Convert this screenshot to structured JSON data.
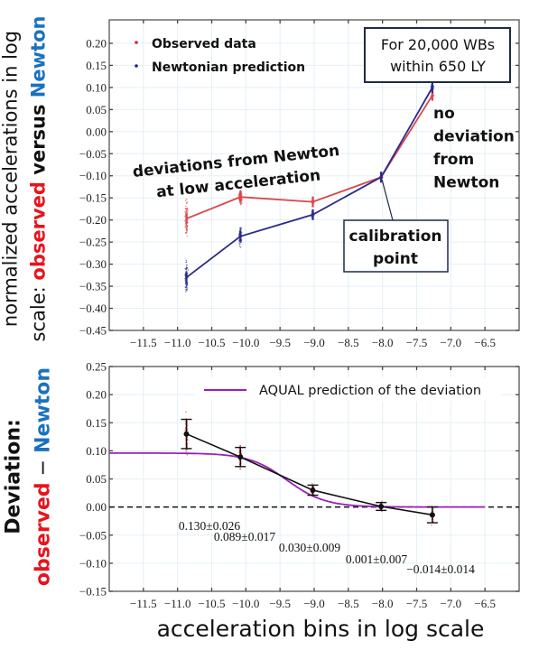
{
  "chart_data": [
    {
      "type": "line",
      "title": "",
      "ylabel_lines": [
        [
          {
            "text": "normalized accelerations in log",
            "color": "#111111",
            "bold": false
          }
        ],
        [
          {
            "text": "scale: ",
            "color": "#111111",
            "bold": false
          },
          {
            "text": "observed",
            "color": "#e8131b",
            "bold": true
          },
          {
            "text": " versus ",
            "color": "#111111",
            "bold": true
          },
          {
            "text": "Newton",
            "color": "#1a72bf",
            "bold": true
          }
        ]
      ],
      "xlabel": "",
      "xlim": [
        -12.0,
        -6.0
      ],
      "ylim": [
        -0.45,
        0.253
      ],
      "xticks": [
        -11.5,
        -11.0,
        -10.5,
        -10.0,
        -9.5,
        -9.0,
        -8.5,
        -8.0,
        -7.5,
        -7.0,
        -6.5
      ],
      "xtick_labels": [
        "−11.5",
        "−11.0",
        "−10.5",
        "−10.0",
        "−9.5",
        "−9.0",
        "−8.5",
        "−8.0",
        "−7.5",
        "−7.0",
        "−6.5"
      ],
      "yticks": [
        0.2,
        0.15,
        0.1,
        0.05,
        0.0,
        -0.05,
        -0.1,
        -0.15,
        -0.2,
        -0.25,
        -0.3,
        -0.35,
        -0.4,
        -0.45
      ],
      "ytick_labels": [
        "0.20",
        "0.15",
        "0.10",
        "0.05",
        "0.00",
        "−0.05",
        "−0.10",
        "−0.15",
        "−0.20",
        "−0.25",
        "−0.30",
        "−0.35",
        "−0.40",
        "−0.45"
      ],
      "grid": true,
      "legend": {
        "placement": "top-left",
        "entries": [
          {
            "label": "Observed data",
            "color": "#d62728",
            "marker": "dot"
          },
          {
            "label": "Newtonian prediction",
            "color": "#1f1f8f",
            "marker": "dot"
          }
        ]
      },
      "x": [
        -10.87,
        -10.08,
        -9.02,
        -8.02,
        -7.27
      ],
      "series": [
        {
          "name": "Observed data",
          "color": "#d9474b",
          "values": [
            -0.197,
            -0.148,
            -0.159,
            -0.103,
            0.082
          ],
          "scatter_spread": [
            0.05,
            0.025,
            0.01,
            0.006,
            0.012
          ]
        },
        {
          "name": "Newtonian prediction",
          "color": "#2b2b8c",
          "values": [
            -0.33,
            -0.237,
            -0.188,
            -0.103,
            0.1
          ],
          "scatter_spread": [
            0.05,
            0.03,
            0.012,
            0.006,
            0.01
          ]
        }
      ],
      "annotations": [
        {
          "id": "box-sample",
          "lines": [
            "For 20,000 WBs",
            "within 650 LY"
          ],
          "boxed": true
        },
        {
          "id": "deviations",
          "lines": [
            "deviations from Newton",
            "at low acceleration"
          ],
          "boxed": false
        },
        {
          "id": "no-deviation",
          "lines": [
            "no",
            "deviation",
            "from",
            "Newton"
          ],
          "boxed": false
        },
        {
          "id": "calibration",
          "lines": [
            "calibration",
            "point"
          ],
          "boxed": true
        }
      ]
    },
    {
      "type": "line",
      "title": "",
      "ylabel_lines": [
        [
          {
            "text": "Deviation:",
            "color": "#111111",
            "bold": true
          }
        ],
        [
          {
            "text": "observed",
            "color": "#e8131b",
            "bold": true
          },
          {
            "text": " − ",
            "color": "#111111",
            "bold": false
          },
          {
            "text": "Newton",
            "color": "#1a72bf",
            "bold": true
          }
        ]
      ],
      "xlabel": "acceleration bins in log scale",
      "xlim": [
        -12.0,
        -6.0
      ],
      "ylim": [
        -0.15,
        0.25
      ],
      "xticks": [
        -11.5,
        -11.0,
        -10.5,
        -10.0,
        -9.5,
        -9.0,
        -8.5,
        -8.0,
        -7.5,
        -7.0,
        -6.5
      ],
      "xtick_labels": [
        "−11.5",
        "−11.0",
        "−10.5",
        "−10.0",
        "−9.5",
        "−9.0",
        "−8.5",
        "−8.0",
        "−7.5",
        "−7.0",
        "−6.5"
      ],
      "yticks": [
        0.25,
        0.2,
        0.15,
        0.1,
        0.05,
        0.0,
        -0.05,
        -0.1,
        -0.15
      ],
      "ytick_labels": [
        "0.25",
        "0.20",
        "0.15",
        "0.10",
        "0.05",
        "0.00",
        "−0.05",
        "−0.10",
        "−0.15"
      ],
      "grid": true,
      "reference_line": {
        "y": 0.0,
        "style": "dashed",
        "color": "#111111"
      },
      "legend": {
        "placement": "top-right",
        "entries": [
          {
            "label": "AQUAL prediction of the deviation",
            "color": "#9b1fb8",
            "marker": "line"
          }
        ]
      },
      "x": [
        -10.87,
        -10.08,
        -9.02,
        -8.02,
        -7.27
      ],
      "series": [
        {
          "name": "Deviation",
          "color": "#111111",
          "values": [
            0.13,
            0.089,
            0.03,
            0.001,
            -0.014
          ],
          "errors": [
            0.026,
            0.017,
            0.009,
            0.007,
            0.014
          ]
        },
        {
          "name": "AQUAL prediction of the deviation",
          "color": "#9b1fb8",
          "curve": {
            "type": "sigmoid",
            "plateau": 0.096,
            "floor": 0.0,
            "x_mid": -9.4,
            "width": 0.28,
            "x_range": [
              -12.0,
              -6.5
            ]
          }
        }
      ],
      "value_labels": [
        "0.130±0.026",
        "0.089±0.017",
        "0.030±0.009",
        "0.001±0.007",
        "−0.014±0.014"
      ]
    }
  ]
}
